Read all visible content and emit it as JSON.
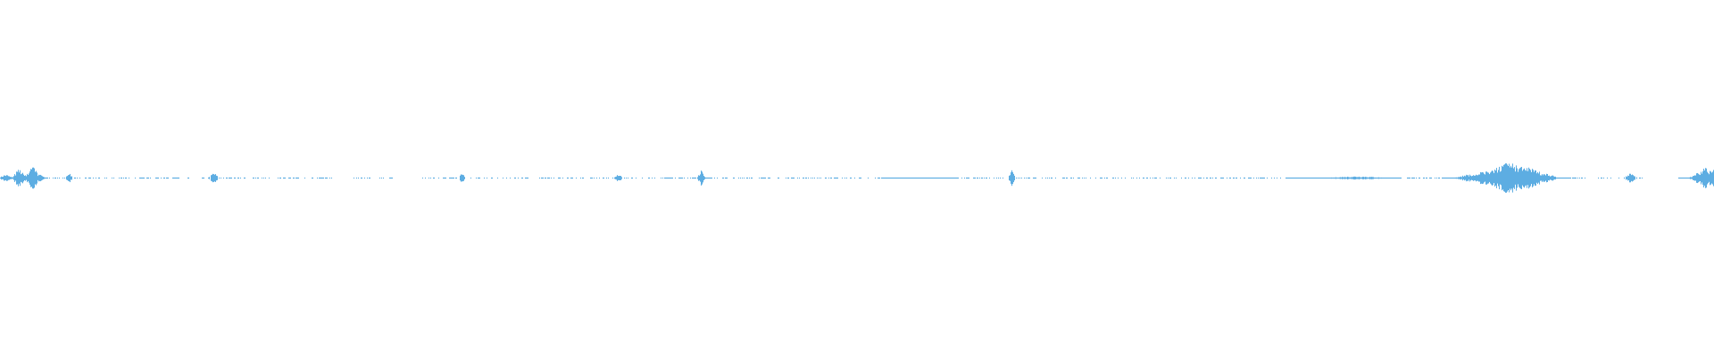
{
  "waveform": {
    "color": "#5dade2",
    "background": "#ffffff"
  }
}
